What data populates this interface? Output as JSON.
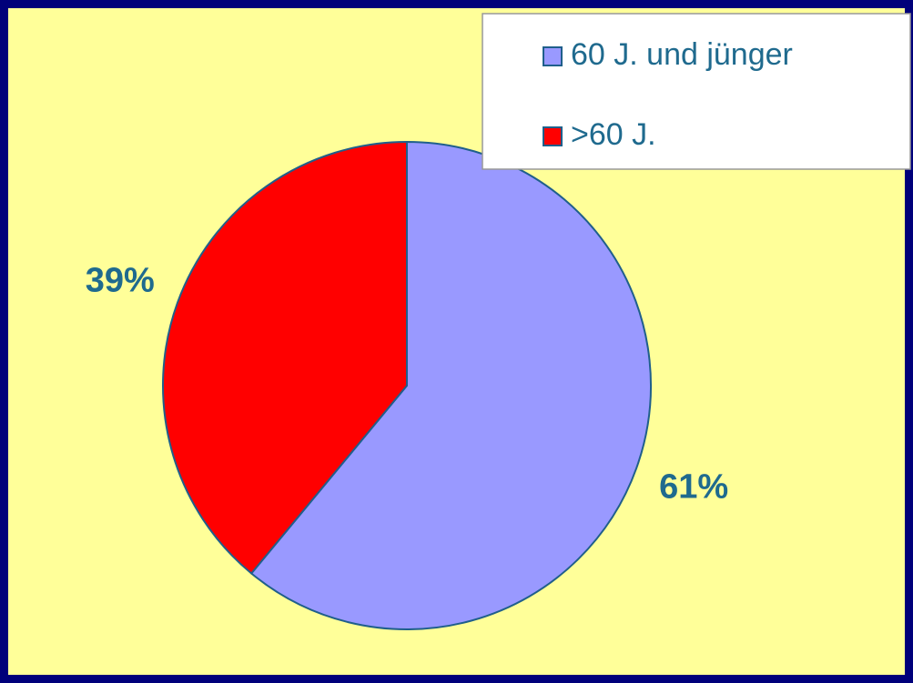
{
  "chart_data": {
    "type": "pie",
    "categories": [
      "60 J. und jünger",
      ">60 J."
    ],
    "values": [
      61,
      39
    ],
    "value_labels": [
      "61%",
      "39%"
    ],
    "colors": [
      "#9999ff",
      "#ff0000"
    ],
    "legend": "top-right"
  }
}
